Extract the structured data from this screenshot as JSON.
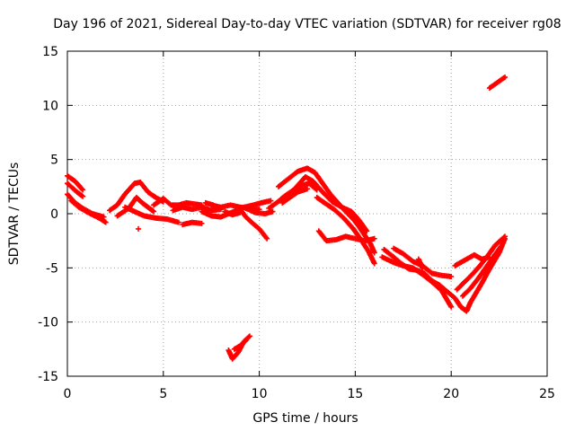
{
  "chart_data": {
    "type": "scatter",
    "title": "Day 196 of 2021, Sidereal Day-to-day VTEC variation (SDTVAR) for receiver rg08",
    "xlabel": "GPS time / hours",
    "ylabel": "SDTVAR / TECUs",
    "xlim": [
      0,
      25
    ],
    "ylim": [
      -15,
      15
    ],
    "xticks": [
      0,
      5,
      10,
      15,
      20,
      25
    ],
    "yticks": [
      -15,
      -10,
      -5,
      0,
      5,
      10,
      15
    ],
    "grid": true,
    "marker": "+",
    "series_color": "#ff0000",
    "tracks": [
      [
        [
          0.0,
          3.5
        ],
        [
          0.4,
          3.0
        ],
        [
          0.8,
          2.2
        ]
      ],
      [
        [
          0.0,
          2.8
        ],
        [
          0.5,
          2.0
        ],
        [
          0.8,
          1.6
        ]
      ],
      [
        [
          0.0,
          1.8
        ],
        [
          0.4,
          1.0
        ],
        [
          0.8,
          0.5
        ],
        [
          1.3,
          0.0
        ],
        [
          1.9,
          -0.3
        ]
      ],
      [
        [
          0.2,
          1.2
        ],
        [
          0.6,
          0.6
        ],
        [
          1.2,
          0.0
        ],
        [
          1.9,
          -0.6
        ]
      ],
      [
        [
          1.5,
          -0.2
        ],
        [
          2.0,
          -0.8
        ]
      ],
      [
        [
          2.2,
          0.3
        ],
        [
          2.6,
          0.8
        ],
        [
          3.0,
          1.8
        ],
        [
          3.5,
          2.8
        ],
        [
          3.8,
          2.9
        ],
        [
          4.2,
          2.0
        ],
        [
          4.6,
          1.5
        ],
        [
          5.0,
          1.1
        ]
      ],
      [
        [
          2.6,
          -0.2
        ],
        [
          3.2,
          0.5
        ],
        [
          3.6,
          1.5
        ],
        [
          3.9,
          1.0
        ],
        [
          4.2,
          0.6
        ],
        [
          4.5,
          0.2
        ]
      ],
      [
        [
          3.0,
          0.6
        ],
        [
          3.5,
          0.2
        ],
        [
          4.0,
          -0.2
        ],
        [
          4.6,
          -0.4
        ],
        [
          5.2,
          -0.5
        ],
        [
          5.8,
          -0.8
        ]
      ],
      [
        [
          3.7,
          -1.4
        ]
      ],
      [
        [
          4.5,
          0.8
        ],
        [
          5.0,
          1.4
        ],
        [
          5.4,
          0.8
        ],
        [
          5.8,
          0.8
        ],
        [
          6.2,
          1.0
        ],
        [
          6.6,
          0.9
        ],
        [
          7.0,
          0.8
        ]
      ],
      [
        [
          5.5,
          0.3
        ],
        [
          6.0,
          0.6
        ],
        [
          6.5,
          0.4
        ],
        [
          7.0,
          0.6
        ],
        [
          7.5,
          0.3
        ],
        [
          8.0,
          0.4
        ]
      ],
      [
        [
          6.0,
          -1.0
        ],
        [
          6.5,
          -0.8
        ],
        [
          7.0,
          -0.9
        ]
      ],
      [
        [
          7.2,
          1.0
        ],
        [
          7.6,
          0.8
        ]
      ],
      [
        [
          7.0,
          0.2
        ],
        [
          7.5,
          -0.2
        ],
        [
          8.0,
          -0.3
        ],
        [
          8.4,
          0.0
        ],
        [
          8.8,
          0.3
        ],
        [
          9.2,
          0.6
        ],
        [
          9.7,
          0.8
        ],
        [
          10.1,
          1.0
        ],
        [
          10.6,
          1.2
        ]
      ],
      [
        [
          7.5,
          0.8
        ],
        [
          8.0,
          0.6
        ],
        [
          8.5,
          0.8
        ],
        [
          9.0,
          0.6
        ],
        [
          9.5,
          0.5
        ],
        [
          10.0,
          0.4
        ]
      ],
      [
        [
          8.2,
          0.2
        ],
        [
          8.6,
          -0.1
        ],
        [
          9.0,
          0.1
        ]
      ],
      [
        [
          9.0,
          0.4
        ],
        [
          9.3,
          -0.3
        ],
        [
          9.6,
          -0.8
        ],
        [
          10.0,
          -1.4
        ],
        [
          10.4,
          -2.3
        ]
      ],
      [
        [
          9.3,
          0.5
        ],
        [
          9.8,
          0.1
        ],
        [
          10.3,
          0.0
        ],
        [
          10.7,
          0.2
        ]
      ],
      [
        [
          10.5,
          0.5
        ],
        [
          10.9,
          1.0
        ],
        [
          11.3,
          1.6
        ],
        [
          11.8,
          2.2
        ],
        [
          12.2,
          2.6
        ],
        [
          12.6,
          2.8
        ],
        [
          13.0,
          2.2
        ]
      ],
      [
        [
          11.0,
          2.5
        ],
        [
          11.5,
          3.2
        ],
        [
          12.0,
          3.9
        ],
        [
          12.5,
          4.2
        ],
        [
          12.9,
          3.8
        ],
        [
          13.3,
          2.8
        ],
        [
          13.7,
          1.8
        ],
        [
          14.1,
          1.0
        ],
        [
          14.5,
          0.2
        ],
        [
          14.9,
          -0.5
        ],
        [
          15.2,
          -1.2
        ],
        [
          15.5,
          -2.0
        ],
        [
          15.8,
          -2.8
        ],
        [
          16.0,
          -3.6
        ]
      ],
      [
        [
          11.6,
          1.8
        ],
        [
          12.0,
          2.6
        ],
        [
          12.4,
          3.4
        ],
        [
          12.8,
          3.0
        ],
        [
          13.3,
          2.0
        ],
        [
          13.8,
          1.1
        ],
        [
          14.3,
          0.6
        ],
        [
          14.8,
          0.2
        ],
        [
          15.2,
          -0.6
        ],
        [
          15.6,
          -1.6
        ]
      ],
      [
        [
          11.2,
          1.0
        ],
        [
          11.6,
          1.5
        ],
        [
          12.0,
          2.0
        ],
        [
          12.5,
          2.3
        ]
      ],
      [
        [
          13.0,
          1.5
        ],
        [
          13.4,
          1.0
        ],
        [
          13.9,
          0.4
        ],
        [
          14.4,
          -0.4
        ],
        [
          14.9,
          -1.4
        ],
        [
          15.3,
          -2.4
        ],
        [
          15.7,
          -3.5
        ],
        [
          16.0,
          -4.6
        ]
      ],
      [
        [
          13.1,
          -1.6
        ],
        [
          13.5,
          -2.5
        ],
        [
          14.0,
          -2.4
        ],
        [
          14.5,
          -2.1
        ],
        [
          15.0,
          -2.3
        ],
        [
          15.5,
          -2.5
        ],
        [
          16.0,
          -2.3
        ]
      ],
      [
        [
          16.5,
          -3.3
        ],
        [
          17.0,
          -4.0
        ],
        [
          17.4,
          -4.6
        ],
        [
          17.8,
          -5.1
        ],
        [
          18.2,
          -5.2
        ],
        [
          18.6,
          -5.5
        ],
        [
          19.0,
          -6.2
        ],
        [
          19.4,
          -6.6
        ],
        [
          19.8,
          -7.2
        ],
        [
          20.2,
          -7.8
        ],
        [
          20.5,
          -8.6
        ],
        [
          20.8,
          -9.0
        ],
        [
          21.0,
          -8.2
        ],
        [
          21.3,
          -7.3
        ],
        [
          21.6,
          -6.4
        ],
        [
          21.9,
          -5.4
        ],
        [
          22.2,
          -4.5
        ],
        [
          22.5,
          -3.6
        ],
        [
          22.8,
          -2.3
        ]
      ],
      [
        [
          17.0,
          -3.2
        ],
        [
          17.5,
          -3.7
        ],
        [
          18.0,
          -4.4
        ],
        [
          18.5,
          -4.8
        ],
        [
          19.0,
          -5.5
        ],
        [
          19.5,
          -5.7
        ],
        [
          20.0,
          -5.8
        ]
      ],
      [
        [
          16.4,
          -4.0
        ],
        [
          17.0,
          -4.5
        ],
        [
          17.5,
          -4.8
        ],
        [
          18.0,
          -5.0
        ],
        [
          18.5,
          -5.6
        ],
        [
          19.0,
          -6.3
        ],
        [
          19.5,
          -7.1
        ],
        [
          20.0,
          -8.6
        ]
      ],
      [
        [
          18.3,
          -4.2
        ],
        [
          18.5,
          -5.0
        ]
      ],
      [
        [
          20.2,
          -4.8
        ],
        [
          20.7,
          -4.3
        ],
        [
          21.2,
          -3.8
        ],
        [
          21.6,
          -4.2
        ],
        [
          22.0,
          -4.0
        ]
      ],
      [
        [
          20.3,
          -7.0
        ],
        [
          20.7,
          -6.3
        ],
        [
          21.1,
          -5.6
        ],
        [
          21.5,
          -4.8
        ],
        [
          21.9,
          -3.9
        ],
        [
          22.3,
          -2.9
        ],
        [
          22.8,
          -2.1
        ]
      ],
      [
        [
          20.6,
          -7.6
        ],
        [
          21.0,
          -6.9
        ],
        [
          21.4,
          -6.0
        ],
        [
          21.8,
          -5.0
        ],
        [
          22.2,
          -4.0
        ],
        [
          22.6,
          -3.0
        ]
      ],
      [
        [
          22.0,
          11.6
        ],
        [
          22.4,
          12.1
        ],
        [
          22.8,
          12.6
        ]
      ],
      [
        [
          8.4,
          -12.6
        ],
        [
          8.6,
          -13.4
        ],
        [
          8.9,
          -12.8
        ],
        [
          9.2,
          -11.8
        ],
        [
          9.5,
          -11.3
        ]
      ],
      [
        [
          8.7,
          -12.5
        ],
        [
          9.0,
          -12.2
        ],
        [
          9.3,
          -11.7
        ]
      ]
    ]
  }
}
